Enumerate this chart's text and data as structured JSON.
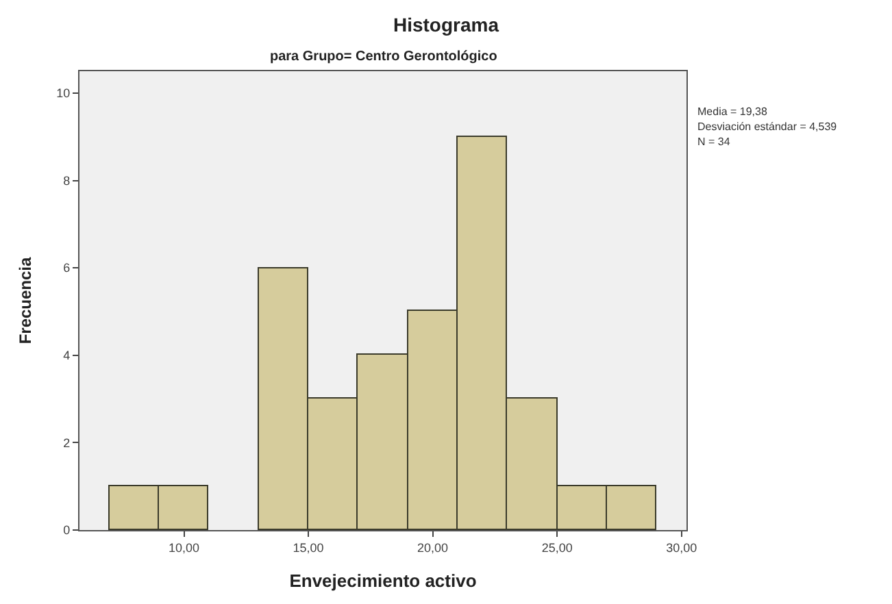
{
  "chart_data": {
    "type": "histogram",
    "title": "Histograma",
    "subtitle": "para Grupo= Centro Gerontológico",
    "xlabel": "Envejecimiento activo",
    "ylabel": "Frecuencia",
    "bins": [
      7,
      9,
      11,
      13,
      15,
      17,
      19,
      21,
      23,
      25,
      27,
      29
    ],
    "values": [
      1,
      1,
      0,
      6,
      3,
      4,
      5,
      9,
      3,
      1,
      1
    ],
    "color": "#d6cc9c",
    "xlim": [
      5.8,
      30.2
    ],
    "xticks": [
      {
        "value": 10,
        "label": "10,00"
      },
      {
        "value": 15,
        "label": "15,00"
      },
      {
        "value": 20,
        "label": "20,00"
      },
      {
        "value": 25,
        "label": "25,00"
      },
      {
        "value": 30,
        "label": "30,00"
      }
    ],
    "ylim": [
      0,
      10.5
    ],
    "yticks": [
      0,
      2,
      4,
      6,
      8,
      10
    ],
    "annotations": [
      "Media = 19,38",
      "Desviación estándar = 4,539",
      "N = 34"
    ]
  }
}
